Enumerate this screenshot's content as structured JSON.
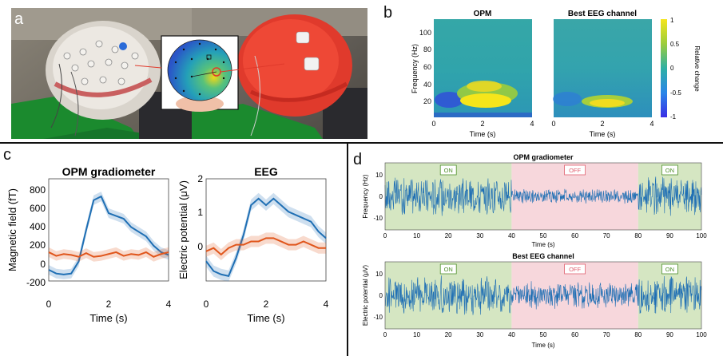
{
  "panel_labels": {
    "a": "a",
    "b": "b",
    "c": "c",
    "d": "d"
  },
  "panel_b": {
    "titles": [
      "OPM",
      "Best EEG channel"
    ],
    "ylabel": "Frequency (Hz)",
    "xlabel": "Time (s)",
    "yticks": [
      "100",
      "80",
      "60",
      "40",
      "20"
    ],
    "xticks": [
      "0",
      "2",
      "4"
    ],
    "colorbar_label": "Relative change",
    "colorbar_ticks": [
      "1",
      "0.5",
      "0",
      "-0.5",
      "-1"
    ],
    "colors": {
      "low": "#3a40e0",
      "mid": "#2fa7a0",
      "high": "#f5e51b"
    }
  },
  "panel_c": {
    "titles": [
      "OPM gradiometer",
      "EEG"
    ],
    "xlabel": "Time (s)",
    "ylabels": [
      "Magnetic field (fT)",
      "Electric potential (μV)"
    ],
    "yticks_left": [
      "800",
      "600",
      "400",
      "200",
      "0",
      "-200"
    ],
    "xticks": [
      "0",
      "2",
      "4"
    ],
    "colors": {
      "blue": "#1f6fb4",
      "orange": "#e0561c"
    }
  },
  "panel_d": {
    "titles": [
      "OPM gradiometer",
      "Best EEG channel"
    ],
    "ylabels": [
      "Frequency (Hz)",
      "Electric potential (μV)"
    ],
    "xlabel": "Time (s)",
    "yticks_top": [
      "10",
      "0",
      "-10"
    ],
    "yticks_bottom": [
      "10",
      "0",
      "-10"
    ],
    "xticks": [
      "0",
      "10",
      "20",
      "30",
      "40",
      "50",
      "60",
      "70",
      "80",
      "90",
      "100"
    ],
    "blocks": [
      {
        "label": "ON",
        "start": 0,
        "end": 40
      },
      {
        "label": "OFF",
        "start": 40,
        "end": 80
      },
      {
        "label": "ON",
        "start": 80,
        "end": 100
      }
    ],
    "colors": {
      "on_bg": "#d5e6c2",
      "off_bg": "#f7d7dc",
      "signal": "#1f6fb4",
      "on_label": "#4e8f2a",
      "off_label": "#e06070"
    }
  },
  "chart_data": [
    {
      "type": "line",
      "title": "OPM gradiometer",
      "xlabel": "Time (s)",
      "ylabel": "Magnetic field (fT)",
      "xlim": [
        0,
        4
      ],
      "ylim": [
        -250,
        850
      ],
      "x": [
        0,
        0.25,
        0.5,
        0.75,
        1.0,
        1.25,
        1.5,
        1.75,
        2.0,
        2.25,
        2.5,
        2.75,
        3.0,
        3.25,
        3.5,
        3.75,
        4.0
      ],
      "series": [
        {
          "values": [
            -130,
            -170,
            -180,
            -170,
            -40,
            300,
            620,
            660,
            480,
            450,
            420,
            330,
            280,
            230,
            130,
            60,
            30
          ]
        },
        {
          "values": [
            60,
            20,
            40,
            30,
            10,
            50,
            10,
            20,
            40,
            60,
            20,
            40,
            30,
            60,
            10,
            40,
            60
          ]
        }
      ]
    },
    {
      "type": "line",
      "title": "EEG",
      "xlabel": "Time (s)",
      "ylabel": "Electric potential (μV)",
      "xlim": [
        0,
        4
      ],
      "ylim": [
        -1.1,
        2
      ],
      "x": [
        0,
        0.25,
        0.5,
        0.75,
        1.0,
        1.25,
        1.5,
        1.75,
        2.0,
        2.25,
        2.5,
        2.75,
        3.0,
        3.25,
        3.5,
        3.75,
        4.0
      ],
      "series": [
        {
          "values": [
            -0.5,
            -0.8,
            -0.9,
            -0.95,
            -0.4,
            0.3,
            1.2,
            1.4,
            1.2,
            1.4,
            1.2,
            1.0,
            0.9,
            0.8,
            0.7,
            0.4,
            0.2
          ]
        },
        {
          "values": [
            -0.2,
            -0.1,
            -0.3,
            -0.1,
            0.0,
            0.0,
            0.1,
            0.1,
            0.2,
            0.2,
            0.1,
            0.0,
            0.0,
            0.1,
            0.0,
            -0.1,
            -0.1
          ]
        }
      ]
    }
  ]
}
